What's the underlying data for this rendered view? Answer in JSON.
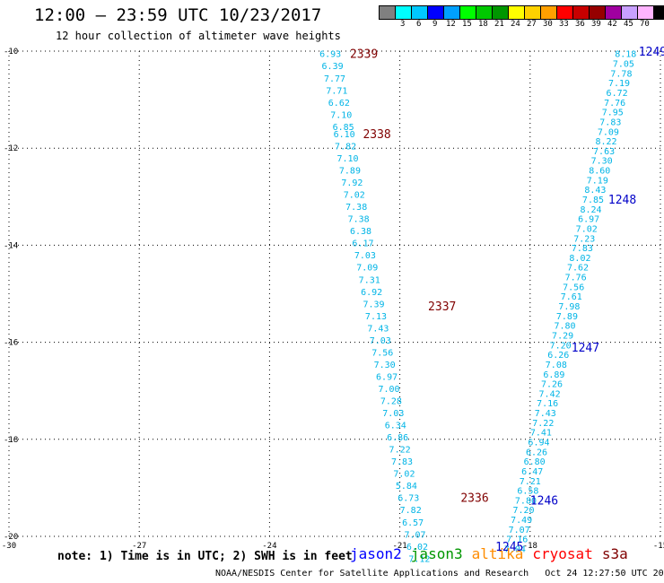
{
  "header": {
    "title": "12:00 — 23:59 UTC 10/23/2017",
    "subtitle": "12 hour collection of altimeter wave heights"
  },
  "color_scale": {
    "unit_label": "(ft)",
    "swatches": [
      {
        "color": "#808080",
        "label": ""
      },
      {
        "color": "#00ffff",
        "label": "3"
      },
      {
        "color": "#00c8ff",
        "label": "6"
      },
      {
        "color": "#0000ff",
        "label": "9"
      },
      {
        "color": "#00a0ff",
        "label": "12"
      },
      {
        "color": "#00ff00",
        "label": "15"
      },
      {
        "color": "#00c800",
        "label": "18"
      },
      {
        "color": "#009600",
        "label": "21"
      },
      {
        "color": "#ffff00",
        "label": "24"
      },
      {
        "color": "#ffd200",
        "label": "27"
      },
      {
        "color": "#ffa000",
        "label": "30"
      },
      {
        "color": "#ff0000",
        "label": "33"
      },
      {
        "color": "#c80000",
        "label": "36"
      },
      {
        "color": "#960000",
        "label": "39"
      },
      {
        "color": "#a000a0",
        "label": "42"
      },
      {
        "color": "#c8a0ff",
        "label": "45"
      },
      {
        "color": "#ffb4ff",
        "label": "70"
      },
      {
        "color": "#000000",
        "label": ""
      }
    ]
  },
  "footer": {
    "note": "note: 1) Time is in UTC; 2) SWH is in feet",
    "satellites": [
      {
        "name": "jason2",
        "color": "#0000ff"
      },
      {
        "name": "jason3",
        "color": "#009600"
      },
      {
        "name": "altika",
        "color": "#ff8c00"
      },
      {
        "name": "cryosat",
        "color": "#ff0000"
      },
      {
        "name": "s3a",
        "color": "#800000"
      }
    ],
    "credits": "NOAA/NESDIS Center for Satellite Applications and Research   Oct 24 12:27:50 UTC 2017"
  },
  "chart_data": {
    "type": "scatter",
    "title": "12 hour collection of altimeter wave heights",
    "xlim": [
      -30,
      -15
    ],
    "ylim": [
      -20,
      -10
    ],
    "x_ticks": [
      "-30",
      "-27",
      "-24",
      "-21",
      "-18",
      "-15"
    ],
    "y_ticks": [
      "-10",
      "-12",
      "-14",
      "-16",
      "-18",
      "-20"
    ],
    "grid": true,
    "series": [
      {
        "name": "s3a",
        "color": "#00b4e6",
        "points": [
          {
            "x": -22.6,
            "y": -10.05,
            "label": "6.93"
          },
          {
            "x": -22.55,
            "y": -10.3,
            "label": "6.39"
          },
          {
            "x": -22.5,
            "y": -10.55,
            "label": "7.77"
          },
          {
            "x": -22.45,
            "y": -10.8,
            "label": "7.71"
          },
          {
            "x": -22.4,
            "y": -11.05,
            "label": "6.62"
          },
          {
            "x": -22.35,
            "y": -11.3,
            "label": "7.10"
          },
          {
            "x": -22.3,
            "y": -11.55,
            "label": "6.85"
          },
          {
            "x": -22.28,
            "y": -11.7,
            "label": "6.10"
          },
          {
            "x": -22.25,
            "y": -11.95,
            "label": "7.82"
          },
          {
            "x": -22.2,
            "y": -12.2,
            "label": "7.10"
          },
          {
            "x": -22.15,
            "y": -12.45,
            "label": "7.89"
          },
          {
            "x": -22.1,
            "y": -12.7,
            "label": "7.92"
          },
          {
            "x": -22.05,
            "y": -12.95,
            "label": "7.02"
          },
          {
            "x": -22.0,
            "y": -13.2,
            "label": "7.38"
          },
          {
            "x": -21.95,
            "y": -13.45,
            "label": "7.38"
          },
          {
            "x": -21.9,
            "y": -13.7,
            "label": "6.38"
          },
          {
            "x": -21.85,
            "y": -13.95,
            "label": "6.17"
          },
          {
            "x": -21.8,
            "y": -14.2,
            "label": "7.03"
          },
          {
            "x": -21.75,
            "y": -14.45,
            "label": "7.09"
          },
          {
            "x": -21.7,
            "y": -14.7,
            "label": "7.31"
          },
          {
            "x": -21.65,
            "y": -14.95,
            "label": "6.92"
          },
          {
            "x": -21.6,
            "y": -15.2,
            "label": "7.39"
          },
          {
            "x": -21.55,
            "y": -15.45,
            "label": "7.13"
          },
          {
            "x": -21.5,
            "y": -15.7,
            "label": "7.43"
          },
          {
            "x": -21.45,
            "y": -15.95,
            "label": "7.03"
          },
          {
            "x": -21.4,
            "y": -16.2,
            "label": "7.56"
          },
          {
            "x": -21.35,
            "y": -16.45,
            "label": "7.30"
          },
          {
            "x": -21.3,
            "y": -16.7,
            "label": "6.97"
          },
          {
            "x": -21.25,
            "y": -16.95,
            "label": "7.00"
          },
          {
            "x": -21.2,
            "y": -17.2,
            "label": "7.28"
          },
          {
            "x": -21.15,
            "y": -17.45,
            "label": "7.03"
          },
          {
            "x": -21.1,
            "y": -17.7,
            "label": "6.34"
          },
          {
            "x": -21.05,
            "y": -17.95,
            "label": "6.86"
          },
          {
            "x": -21.0,
            "y": -18.2,
            "label": "7.22"
          },
          {
            "x": -20.95,
            "y": -18.45,
            "label": "7.83"
          },
          {
            "x": -20.9,
            "y": -18.7,
            "label": "7.02"
          },
          {
            "x": -20.85,
            "y": -18.95,
            "label": "5.84"
          },
          {
            "x": -20.8,
            "y": -19.2,
            "label": "6.73"
          },
          {
            "x": -20.75,
            "y": -19.45,
            "label": "7.82"
          },
          {
            "x": -20.7,
            "y": -19.7,
            "label": "6.57"
          },
          {
            "x": -20.65,
            "y": -19.95,
            "label": "7.07"
          },
          {
            "x": -20.6,
            "y": -20.2,
            "label": "6.02"
          },
          {
            "x": -20.55,
            "y": -20.45,
            "label": "7.12"
          }
        ]
      },
      {
        "name": "jason2",
        "color": "#00b4e6",
        "points": [
          {
            "x": -15.8,
            "y": -10.05,
            "label": "8.18"
          },
          {
            "x": -15.85,
            "y": -10.25,
            "label": "7.05"
          },
          {
            "x": -15.9,
            "y": -10.45,
            "label": "7.78"
          },
          {
            "x": -15.95,
            "y": -10.65,
            "label": "7.19"
          },
          {
            "x": -16.0,
            "y": -10.85,
            "label": "6.72"
          },
          {
            "x": -16.05,
            "y": -11.05,
            "label": "7.76"
          },
          {
            "x": -16.1,
            "y": -11.25,
            "label": "7.95"
          },
          {
            "x": -16.15,
            "y": -11.45,
            "label": "7.83"
          },
          {
            "x": -16.2,
            "y": -11.65,
            "label": "7.09"
          },
          {
            "x": -16.25,
            "y": -11.85,
            "label": "8.22"
          },
          {
            "x": -16.3,
            "y": -12.05,
            "label": "7.63"
          },
          {
            "x": -16.35,
            "y": -12.25,
            "label": "7.30"
          },
          {
            "x": -16.4,
            "y": -12.45,
            "label": "8.60"
          },
          {
            "x": -16.45,
            "y": -12.65,
            "label": "7.19"
          },
          {
            "x": -16.5,
            "y": -12.85,
            "label": "8.43"
          },
          {
            "x": -16.55,
            "y": -13.05,
            "label": "7.85"
          },
          {
            "x": -16.6,
            "y": -13.25,
            "label": "8.24"
          },
          {
            "x": -16.65,
            "y": -13.45,
            "label": "6.97"
          },
          {
            "x": -16.7,
            "y": -13.65,
            "label": "7.02"
          },
          {
            "x": -16.75,
            "y": -13.85,
            "label": "7.23"
          },
          {
            "x": -16.8,
            "y": -14.05,
            "label": "7.83"
          },
          {
            "x": -16.85,
            "y": -14.25,
            "label": "8.02"
          },
          {
            "x": -16.9,
            "y": -14.45,
            "label": "7.62"
          },
          {
            "x": -16.95,
            "y": -14.65,
            "label": "7.76"
          },
          {
            "x": -17.0,
            "y": -14.85,
            "label": "7.56"
          },
          {
            "x": -17.05,
            "y": -15.05,
            "label": "7.61"
          },
          {
            "x": -17.1,
            "y": -15.25,
            "label": "7.98"
          },
          {
            "x": -17.15,
            "y": -15.45,
            "label": "7.89"
          },
          {
            "x": -17.2,
            "y": -15.65,
            "label": "7.80"
          },
          {
            "x": -17.25,
            "y": -15.85,
            "label": "7.29"
          },
          {
            "x": -17.3,
            "y": -16.05,
            "label": "7.20"
          },
          {
            "x": -17.35,
            "y": -16.25,
            "label": "6.26"
          },
          {
            "x": -17.4,
            "y": -16.45,
            "label": "7.08"
          },
          {
            "x": -17.45,
            "y": -16.65,
            "label": "6.89"
          },
          {
            "x": -17.5,
            "y": -16.85,
            "label": "7.26"
          },
          {
            "x": -17.55,
            "y": -17.05,
            "label": "7.42"
          },
          {
            "x": -17.6,
            "y": -17.25,
            "label": "7.16"
          },
          {
            "x": -17.65,
            "y": -17.45,
            "label": "7.43"
          },
          {
            "x": -17.7,
            "y": -17.65,
            "label": "7.22"
          },
          {
            "x": -17.75,
            "y": -17.85,
            "label": "7.41"
          },
          {
            "x": -17.8,
            "y": -18.05,
            "label": "6.94"
          },
          {
            "x": -17.85,
            "y": -18.25,
            "label": "6.26"
          },
          {
            "x": -17.9,
            "y": -18.45,
            "label": "6.80"
          },
          {
            "x": -17.95,
            "y": -18.65,
            "label": "6.47"
          },
          {
            "x": -18.0,
            "y": -18.85,
            "label": "7.21"
          },
          {
            "x": -18.05,
            "y": -19.05,
            "label": "6.58"
          },
          {
            "x": -18.1,
            "y": -19.25,
            "label": "7.80"
          },
          {
            "x": -18.15,
            "y": -19.45,
            "label": "7.20"
          },
          {
            "x": -18.2,
            "y": -19.65,
            "label": "7.49"
          },
          {
            "x": -18.25,
            "y": -19.85,
            "label": "7.07"
          },
          {
            "x": -18.3,
            "y": -20.05,
            "label": "7.16"
          },
          {
            "x": -18.35,
            "y": -20.25,
            "label": "7.04"
          }
        ]
      }
    ],
    "pass_labels": [
      {
        "text": "2339",
        "x": -22.15,
        "y": -10.05,
        "color": "#800000"
      },
      {
        "text": "2338",
        "x": -21.85,
        "y": -11.7,
        "color": "#800000"
      },
      {
        "text": "2337",
        "x": -20.35,
        "y": -15.25,
        "color": "#800000"
      },
      {
        "text": "2336",
        "x": -19.6,
        "y": -19.2,
        "color": "#800000"
      },
      {
        "text": "1249",
        "x": -15.5,
        "y": -10.0,
        "color": "#0000c8"
      },
      {
        "text": "1248",
        "x": -16.2,
        "y": -13.05,
        "color": "#0000c8"
      },
      {
        "text": "1247",
        "x": -17.05,
        "y": -16.1,
        "color": "#0000c8"
      },
      {
        "text": "1246",
        "x": -18.0,
        "y": -19.25,
        "color": "#0000c8"
      },
      {
        "text": "1245",
        "x": -18.8,
        "y": -20.2,
        "color": "#0000c8"
      }
    ]
  }
}
